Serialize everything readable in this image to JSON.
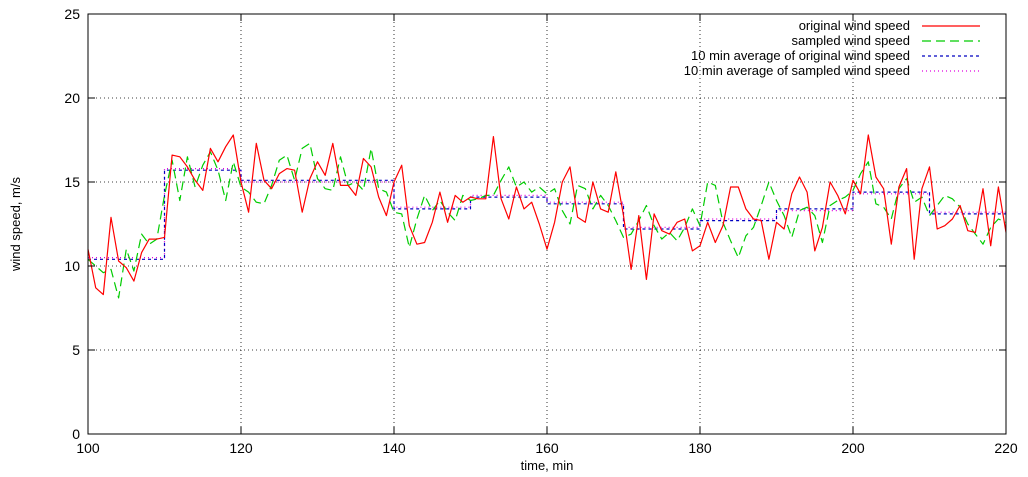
{
  "chart_data": {
    "type": "line",
    "title": "",
    "xlabel": "time, min",
    "ylabel": "wind speed, m/s",
    "xlim": [
      100,
      220
    ],
    "ylim": [
      0,
      25
    ],
    "xticks": [
      "100",
      "120",
      "140",
      "160",
      "180",
      "200",
      "220"
    ],
    "yticks": [
      "0",
      "5",
      "10",
      "15",
      "20",
      "25"
    ],
    "grid": true,
    "legend_position": "top-right",
    "series": [
      {
        "name": "original wind speed",
        "color": "#ff0000",
        "dash": "solid",
        "x": [
          100,
          101,
          102,
          103,
          104,
          105,
          106,
          107,
          108,
          109,
          110,
          111,
          112,
          113,
          114,
          115,
          116,
          117,
          118,
          119,
          120,
          121,
          122,
          123,
          124,
          125,
          126,
          127,
          128,
          129,
          130,
          131,
          132,
          133,
          134,
          135,
          136,
          137,
          138,
          139,
          140,
          141,
          142,
          143,
          144,
          145,
          146,
          147,
          148,
          149,
          150,
          151,
          152,
          153,
          154,
          155,
          156,
          157,
          158,
          159,
          160,
          161,
          162,
          163,
          164,
          165,
          166,
          167,
          168,
          169,
          170,
          171,
          172,
          173,
          174,
          175,
          176,
          177,
          178,
          179,
          180,
          181,
          182,
          183,
          184,
          185,
          186,
          187,
          188,
          189,
          190,
          191,
          192,
          193,
          194,
          195,
          196,
          197,
          198,
          199,
          200,
          201,
          202,
          203,
          204,
          205,
          206,
          207,
          208,
          209,
          210,
          211,
          212,
          213,
          214,
          215,
          216,
          217,
          218,
          219,
          220
        ],
        "values": [
          11.0,
          8.7,
          8.3,
          12.9,
          10.3,
          9.9,
          9.1,
          10.8,
          11.6,
          11.6,
          11.7,
          16.6,
          16.5,
          15.9,
          15.1,
          14.5,
          17.0,
          16.2,
          17.1,
          17.8,
          15.0,
          13.2,
          17.3,
          15.1,
          14.6,
          15.5,
          15.8,
          15.7,
          13.2,
          15.2,
          16.2,
          15.4,
          17.3,
          14.8,
          14.8,
          14.2,
          16.4,
          15.9,
          14.1,
          13.0,
          15.0,
          16.0,
          12.4,
          11.3,
          11.4,
          12.6,
          14.4,
          12.6,
          14.2,
          13.8,
          14.1,
          14.0,
          14.0,
          17.7,
          14.0,
          12.8,
          14.7,
          13.4,
          13.8,
          12.5,
          11.0,
          12.6,
          15.0,
          15.9,
          12.9,
          12.6,
          15.0,
          13.4,
          13.2,
          15.6,
          13.0,
          9.8,
          13.0,
          9.2,
          13.1,
          12.1,
          11.9,
          12.6,
          12.8,
          10.9,
          11.2,
          12.6,
          11.4,
          12.4,
          14.7,
          14.7,
          13.4,
          12.8,
          12.7,
          10.4,
          12.6,
          12.2,
          14.3,
          15.3,
          14.4,
          10.9,
          12.3,
          15.0,
          14.2,
          13.1,
          15.1,
          14.3,
          17.8,
          15.3,
          14.6,
          11.3,
          14.7,
          15.8,
          10.4,
          14.6,
          15.9,
          12.2,
          12.4,
          12.8,
          13.6,
          12.1,
          12.0,
          14.6,
          11.2,
          14.7,
          12.0
        ]
      },
      {
        "name": "sampled wind speed",
        "color": "#00cc00",
        "dash": "9,5",
        "x": [
          100,
          101,
          102,
          103,
          104,
          105,
          106,
          107,
          108,
          109,
          110,
          111,
          112,
          113,
          114,
          115,
          116,
          117,
          118,
          119,
          120,
          121,
          122,
          123,
          124,
          125,
          126,
          127,
          128,
          129,
          130,
          131,
          132,
          133,
          134,
          135,
          136,
          137,
          138,
          139,
          140,
          141,
          142,
          143,
          144,
          145,
          146,
          147,
          148,
          149,
          150,
          151,
          152,
          153,
          154,
          155,
          156,
          157,
          158,
          159,
          160,
          161,
          162,
          163,
          164,
          165,
          166,
          167,
          168,
          169,
          170,
          171,
          172,
          173,
          174,
          175,
          176,
          177,
          178,
          179,
          180,
          181,
          182,
          183,
          184,
          185,
          186,
          187,
          188,
          189,
          190,
          191,
          192,
          193,
          194,
          195,
          196,
          197,
          198,
          199,
          200,
          201,
          202,
          203,
          204,
          205,
          206,
          207,
          208,
          209,
          210,
          211,
          212,
          213,
          214,
          215,
          216,
          217,
          218,
          219,
          220
        ],
        "values": [
          10.4,
          10.0,
          9.6,
          9.8,
          8.1,
          11.0,
          9.7,
          11.9,
          11.3,
          11.6,
          14.2,
          16.3,
          13.9,
          16.5,
          14.7,
          16.0,
          16.8,
          15.7,
          13.9,
          16.2,
          14.7,
          14.4,
          13.8,
          13.7,
          14.8,
          16.3,
          16.6,
          15.1,
          17.0,
          17.3,
          15.2,
          14.6,
          14.5,
          16.5,
          14.8,
          15.0,
          14.5,
          17.0,
          14.6,
          14.4,
          13.2,
          13.1,
          11.1,
          12.8,
          14.2,
          13.3,
          13.9,
          13.2,
          12.7,
          14.2,
          13.9,
          14.0,
          14.2,
          14.2,
          15.1,
          15.9,
          14.7,
          15.0,
          14.4,
          14.7,
          14.3,
          14.6,
          13.3,
          12.5,
          14.8,
          14.6,
          13.4,
          14.2,
          13.6,
          12.7,
          11.7,
          11.9,
          12.7,
          13.6,
          12.4,
          11.6,
          12.0,
          11.5,
          12.3,
          13.4,
          12.4,
          15.0,
          14.8,
          12.6,
          11.5,
          10.5,
          11.8,
          12.3,
          13.6,
          15.0,
          13.9,
          13.0,
          11.7,
          13.3,
          13.5,
          13.0,
          11.4,
          13.6,
          13.9,
          14.1,
          14.5,
          15.5,
          16.2,
          13.7,
          13.5,
          12.8,
          14.6,
          15.2,
          13.8,
          14.1,
          13.0,
          13.6,
          14.2,
          14.0,
          13.5,
          12.5,
          11.9,
          11.3,
          12.3,
          12.8,
          12.6
        ]
      },
      {
        "name": "10 min average of original wind speed",
        "color": "#0000c0",
        "dash": "3,3",
        "x": [
          100,
          110,
          110,
          120,
          120,
          140,
          140,
          150,
          150,
          160,
          160,
          170,
          170,
          180,
          180,
          190,
          190,
          200,
          200,
          210,
          210,
          220
        ],
        "values": [
          10.4,
          10.4,
          15.7,
          15.7,
          15.1,
          15.1,
          13.4,
          13.4,
          14.1,
          14.1,
          13.7,
          13.7,
          12.2,
          12.2,
          12.7,
          12.7,
          13.4,
          13.4,
          14.4,
          14.4,
          13.1,
          13.1
        ]
      },
      {
        "name": "10 min average of sampled wind speed",
        "color": "#e000e0",
        "dash": "1,3",
        "x": [
          100,
          110,
          110,
          120,
          120,
          140,
          140,
          150,
          150,
          160,
          160,
          170,
          170,
          180,
          180,
          190,
          190,
          200,
          200,
          210,
          210,
          220
        ],
        "values": [
          10.5,
          10.5,
          15.8,
          15.8,
          15.0,
          15.0,
          13.5,
          13.5,
          14.2,
          14.2,
          13.8,
          13.8,
          12.3,
          12.3,
          12.8,
          12.8,
          13.3,
          13.3,
          14.3,
          14.3,
          13.2,
          13.2
        ]
      }
    ]
  }
}
